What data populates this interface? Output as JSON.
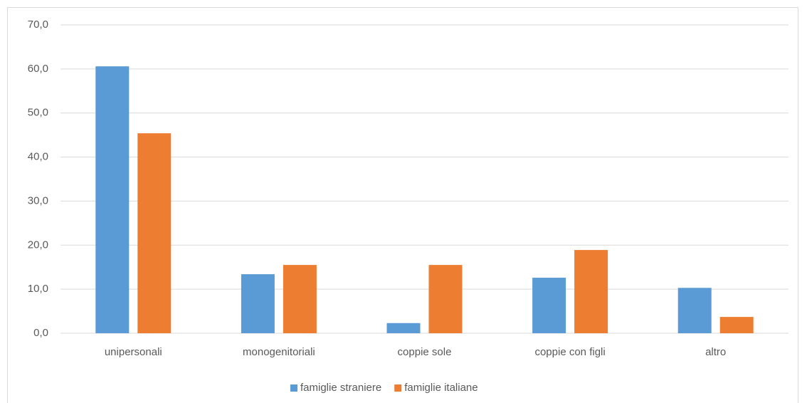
{
  "chart_data": {
    "type": "bar",
    "categories": [
      "unipersonali",
      "monogenitoriali",
      "coppie sole",
      "coppie con figli",
      "altro"
    ],
    "series": [
      {
        "name": "famiglie straniere",
        "color": "#5b9bd5",
        "values": [
          60.6,
          13.4,
          2.3,
          12.6,
          10.3
        ]
      },
      {
        "name": "famiglie italiane",
        "color": "#ed7d31",
        "values": [
          45.4,
          15.5,
          15.5,
          18.9,
          3.7
        ]
      }
    ],
    "ylim": [
      0,
      70
    ],
    "yticks": [
      {
        "value": 0,
        "label": "0,0"
      },
      {
        "value": 10,
        "label": "10,0"
      },
      {
        "value": 20,
        "label": "20,0"
      },
      {
        "value": 30,
        "label": "30,0"
      },
      {
        "value": 40,
        "label": "40,0"
      },
      {
        "value": 50,
        "label": "50,0"
      },
      {
        "value": 60,
        "label": "60,0"
      },
      {
        "value": 70,
        "label": "70,0"
      }
    ],
    "grid": true,
    "legend": "bottom"
  }
}
